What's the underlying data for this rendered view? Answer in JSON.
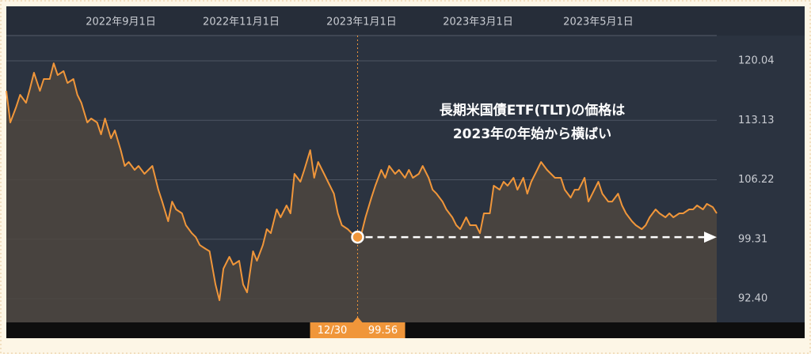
{
  "chart_data": {
    "type": "line",
    "color": "#f0963a",
    "area_color": "#4d463f",
    "annotations": [
      "長期米国債ETF(TLT)の価格は",
      "2023年の年始から横ばい"
    ],
    "highlight": {
      "label": "12/30",
      "value": 99.56
    },
    "xlim": [
      "2022-07-05",
      "2023-06-30"
    ],
    "xticks": [
      {
        "value": "2022-09-01",
        "label": "2022年9月1日"
      },
      {
        "value": "2022-11-01",
        "label": "2022年11月1日"
      },
      {
        "value": "2023-01-01",
        "label": "2023年1月1日"
      },
      {
        "value": "2023-03-01",
        "label": "2023年3月1日"
      },
      {
        "value": "2023-05-01",
        "label": "2023年5月1日"
      }
    ],
    "ylim": [
      89.65,
      122.98
    ],
    "yticks": [
      {
        "value": 92.4,
        "label": "92.40"
      },
      99.31,
      106.22,
      113.13,
      120.04
    ],
    "grid": true,
    "x": [
      "2022-07-05",
      "2022-07-07",
      "2022-07-10",
      "2022-07-12",
      "2022-07-15",
      "2022-07-17",
      "2022-07-19",
      "2022-07-22",
      "2022-07-24",
      "2022-07-27",
      "2022-07-29",
      "2022-07-31",
      "2022-08-03",
      "2022-08-05",
      "2022-08-08",
      "2022-08-10",
      "2022-08-12",
      "2022-08-15",
      "2022-08-17",
      "2022-08-20",
      "2022-08-22",
      "2022-08-24",
      "2022-08-27",
      "2022-08-29",
      "2022-09-01",
      "2022-09-03",
      "2022-09-05",
      "2022-09-08",
      "2022-09-10",
      "2022-09-13",
      "2022-09-15",
      "2022-09-17",
      "2022-09-20",
      "2022-09-22",
      "2022-09-25",
      "2022-09-27",
      "2022-09-29",
      "2022-10-02",
      "2022-10-04",
      "2022-10-07",
      "2022-10-09",
      "2022-10-11",
      "2022-10-14",
      "2022-10-16",
      "2022-10-19",
      "2022-10-21",
      "2022-10-23",
      "2022-10-26",
      "2022-10-28",
      "2022-10-31",
      "2022-11-02",
      "2022-11-04",
      "2022-11-07",
      "2022-11-09",
      "2022-11-12",
      "2022-11-14",
      "2022-11-16",
      "2022-11-19",
      "2022-11-21",
      "2022-11-24",
      "2022-11-26",
      "2022-11-28",
      "2022-12-01",
      "2022-12-03",
      "2022-12-06",
      "2022-12-08",
      "2022-12-10",
      "2022-12-13",
      "2022-12-15",
      "2022-12-18",
      "2022-12-20",
      "2022-12-22",
      "2022-12-25",
      "2022-12-27",
      "2022-12-30",
      "2023-01-01",
      "2023-01-03",
      "2023-01-06",
      "2023-01-08",
      "2023-01-11",
      "2023-01-13",
      "2023-01-15",
      "2023-01-18",
      "2023-01-20",
      "2023-01-23",
      "2023-01-25",
      "2023-01-27",
      "2023-01-30",
      "2023-02-01",
      "2023-02-04",
      "2023-02-06",
      "2023-02-08",
      "2023-02-11",
      "2023-02-13",
      "2023-02-16",
      "2023-02-18",
      "2023-02-20",
      "2023-02-23",
      "2023-02-25",
      "2023-02-28",
      "2023-03-02",
      "2023-03-04",
      "2023-03-07",
      "2023-03-09",
      "2023-03-12",
      "2023-03-14",
      "2023-03-16",
      "2023-03-19",
      "2023-03-21",
      "2023-03-24",
      "2023-03-26",
      "2023-03-28",
      "2023-03-31",
      "2023-04-02",
      "2023-04-05",
      "2023-04-07",
      "2023-04-09",
      "2023-04-12",
      "2023-04-14",
      "2023-04-17",
      "2023-04-19",
      "2023-04-21",
      "2023-04-24",
      "2023-04-26",
      "2023-04-29",
      "2023-05-01",
      "2023-05-03",
      "2023-05-06",
      "2023-05-08",
      "2023-05-11",
      "2023-05-13",
      "2023-05-15",
      "2023-05-18",
      "2023-05-20",
      "2023-05-23",
      "2023-05-25",
      "2023-05-27",
      "2023-05-30",
      "2023-06-01",
      "2023-06-04",
      "2023-06-06",
      "2023-06-08",
      "2023-06-11",
      "2023-06-13",
      "2023-06-16",
      "2023-06-18",
      "2023-06-20",
      "2023-06-23",
      "2023-06-25",
      "2023-06-28",
      "2023-06-30"
    ],
    "values": [
      116.55,
      112.88,
      114.71,
      116.09,
      115.17,
      116.83,
      118.66,
      116.55,
      117.93,
      117.93,
      119.76,
      118.39,
      118.85,
      117.47,
      117.93,
      116.09,
      115.17,
      112.88,
      113.34,
      112.88,
      111.5,
      113.34,
      111.04,
      111.96,
      109.66,
      107.83,
      108.29,
      107.37,
      107.83,
      106.91,
      107.37,
      107.83,
      105.07,
      103.69,
      101.4,
      103.69,
      102.78,
      102.32,
      100.94,
      100.02,
      99.56,
      98.64,
      98.19,
      97.91,
      94.06,
      92.22,
      95.89,
      97.27,
      96.35,
      96.81,
      94.06,
      93.14,
      97.91,
      96.81,
      98.64,
      100.48,
      100.02,
      102.78,
      101.86,
      103.24,
      102.32,
      106.91,
      105.99,
      107.37,
      109.66,
      106.45,
      108.29,
      106.91,
      105.99,
      104.61,
      102.32,
      100.94,
      100.48,
      100.02,
      99.56,
      100.02,
      101.86,
      104.15,
      105.53,
      107.37,
      106.45,
      107.83,
      106.91,
      107.37,
      106.45,
      107.37,
      106.45,
      106.91,
      107.83,
      106.45,
      105.07,
      104.61,
      103.69,
      102.78,
      101.86,
      100.94,
      100.48,
      101.86,
      100.94,
      100.94,
      100.02,
      102.32,
      102.32,
      105.53,
      105.07,
      105.99,
      105.53,
      106.45,
      105.07,
      106.45,
      104.61,
      105.99,
      107.37,
      108.29,
      107.37,
      106.91,
      106.45,
      106.45,
      105.07,
      104.15,
      105.07,
      105.07,
      106.45,
      103.69,
      105.07,
      105.99,
      104.61,
      103.69,
      103.69,
      104.61,
      103.24,
      102.32,
      101.4,
      100.94,
      100.48,
      100.94,
      101.86,
      102.78,
      102.32,
      101.86,
      102.32,
      101.86,
      102.32,
      102.32,
      102.78,
      102.78,
      103.24,
      102.78,
      103.42,
      103.05,
      102.32
    ]
  }
}
